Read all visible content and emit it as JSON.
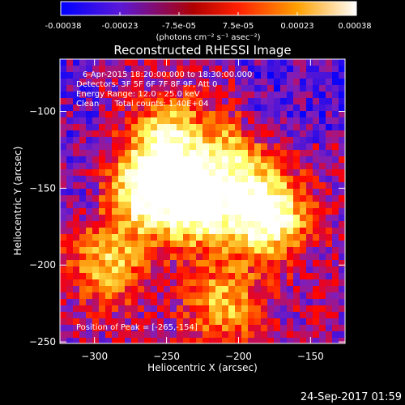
{
  "colorbar": {
    "ticks": [
      "-0.00038",
      "-0.00023",
      "-7.5e-05",
      "7.5e-05",
      "0.00023",
      "0.00038"
    ],
    "unit_label": "(photons cm⁻² s⁻¹ asec⁻²)"
  },
  "chart_data": {
    "type": "heatmap",
    "title": "Reconstructed RHESSI Image",
    "xlabel": "Heliocentric X (arcsec)",
    "ylabel": "Heliocentric Y (arcsec)",
    "xlim": [
      -324,
      -126
    ],
    "ylim": [
      -251,
      -66
    ],
    "x_ticks": [
      -300,
      -250,
      -200,
      -150
    ],
    "y_ticks": [
      -100,
      -150,
      -200,
      -250
    ],
    "x_tick_labels": [
      "−300",
      "−250",
      "−200",
      "−150"
    ],
    "y_tick_labels": [
      "−100",
      "−150",
      "−200",
      "−250"
    ],
    "value_range": [
      -0.00038,
      0.00038
    ],
    "colormap": [
      "#0000ff",
      "#7a1fc0",
      "#ff0000",
      "#ff8c00",
      "#ffff66",
      "#ffffff"
    ],
    "bright_sources": [
      {
        "x": -262,
        "y": -152,
        "level": 0.95
      },
      {
        "x": -226,
        "y": -162,
        "level": 0.85
      },
      {
        "x": -180,
        "y": -168,
        "level": 0.98
      },
      {
        "x": -248,
        "y": -120,
        "level": 0.72
      },
      {
        "x": -205,
        "y": -132,
        "level": 0.55
      },
      {
        "x": -290,
        "y": -198,
        "level": 0.55
      },
      {
        "x": -210,
        "y": -225,
        "level": 0.5
      }
    ],
    "info_lines": [
      "6-Apr-2015 18:20:00.000 to 18:30:00.000",
      "Detectors: 3F 5F 6F 7F 8F 9F, Att 0",
      "Energy Range: 12.0 - 25.0 keV",
      "Clean      Total counts: 1.40E+04"
    ],
    "peak_label": "Position of Peak = [-265,-154]"
  },
  "footer": {
    "timestamp": "24-Sep-2017 01:59"
  }
}
